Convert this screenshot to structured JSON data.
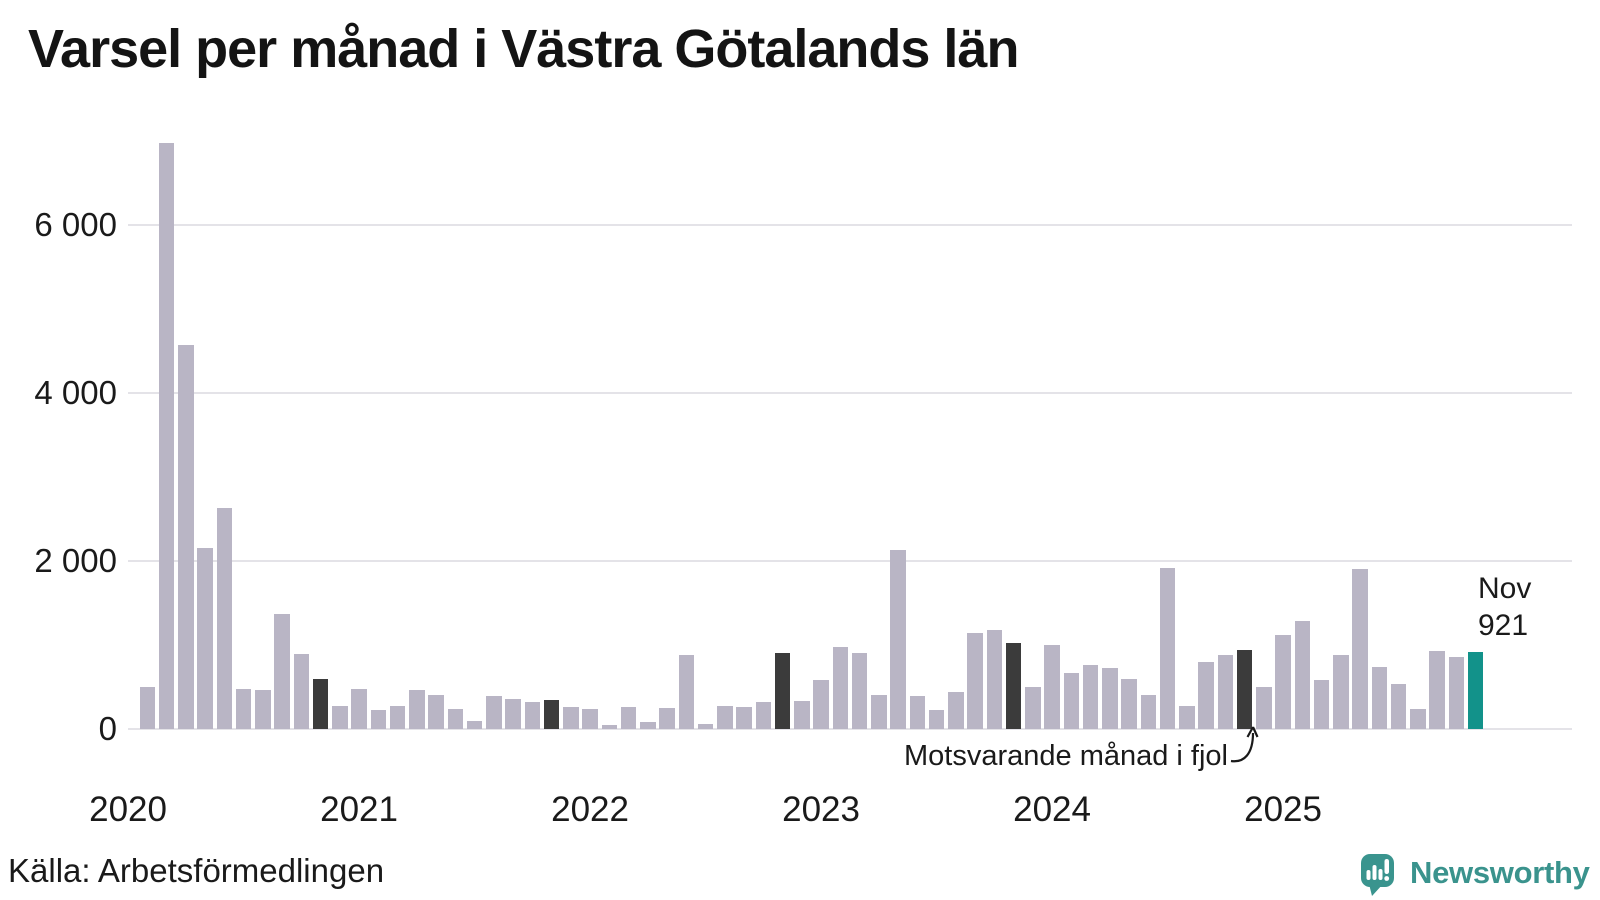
{
  "title": "Varsel per månad i Västra Götalands län",
  "colors": {
    "bar_default": "#b9b5c5",
    "bar_prev_november": "#3b3b3b",
    "bar_current": "#12928a",
    "gridline": "#e4e3e8",
    "text": "#1a1a1a",
    "logo": "#3a938d"
  },
  "y_axis": {
    "ticks": [
      {
        "label": "0",
        "value": 0
      },
      {
        "label": "2 000",
        "value": 2000
      },
      {
        "label": "4 000",
        "value": 4000
      },
      {
        "label": "6 000",
        "value": 6000
      }
    ],
    "max": 7365
  },
  "x_axis": {
    "years": [
      {
        "label": "2020",
        "month_index": -1
      },
      {
        "label": "2021",
        "month_index": 11
      },
      {
        "label": "2022",
        "month_index": 23
      },
      {
        "label": "2023",
        "month_index": 35
      },
      {
        "label": "2024",
        "month_index": 47
      },
      {
        "label": "2025",
        "month_index": 59
      }
    ]
  },
  "chart_data": {
    "type": "bar",
    "title": "Varsel per månad i Västra Götalands län",
    "ylabel": "",
    "xlabel": "",
    "ylim": [
      0,
      7365
    ],
    "grid": true,
    "legend": "none",
    "note": "dark bars = November of each earlier year (motsvarande månad i fjol); teal bar = latest month (Nov 2025)",
    "months": [
      {
        "m": "Feb 2020",
        "v": 500,
        "role": "default"
      },
      {
        "m": "Mar 2020",
        "v": 6980,
        "role": "default"
      },
      {
        "m": "Apr 2020",
        "v": 4570,
        "role": "default"
      },
      {
        "m": "May 2020",
        "v": 2160,
        "role": "default"
      },
      {
        "m": "Jun 2020",
        "v": 2630,
        "role": "default"
      },
      {
        "m": "Jul 2020",
        "v": 480,
        "role": "default"
      },
      {
        "m": "Aug 2020",
        "v": 460,
        "role": "default"
      },
      {
        "m": "Sep 2020",
        "v": 1370,
        "role": "default"
      },
      {
        "m": "Oct 2020",
        "v": 890,
        "role": "default"
      },
      {
        "m": "Nov 2020",
        "v": 590,
        "role": "prev_november"
      },
      {
        "m": "Dec 2020",
        "v": 270,
        "role": "default"
      },
      {
        "m": "Jan 2021",
        "v": 475,
        "role": "default"
      },
      {
        "m": "Feb 2021",
        "v": 225,
        "role": "default"
      },
      {
        "m": "Mar 2021",
        "v": 270,
        "role": "default"
      },
      {
        "m": "Apr 2021",
        "v": 460,
        "role": "default"
      },
      {
        "m": "May 2021",
        "v": 410,
        "role": "default"
      },
      {
        "m": "Jun 2021",
        "v": 240,
        "role": "default"
      },
      {
        "m": "Jul 2021",
        "v": 100,
        "role": "default"
      },
      {
        "m": "Aug 2021",
        "v": 390,
        "role": "default"
      },
      {
        "m": "Sep 2021",
        "v": 355,
        "role": "default"
      },
      {
        "m": "Oct 2021",
        "v": 320,
        "role": "default"
      },
      {
        "m": "Nov 2021",
        "v": 340,
        "role": "prev_november"
      },
      {
        "m": "Dec 2021",
        "v": 265,
        "role": "default"
      },
      {
        "m": "Jan 2022",
        "v": 240,
        "role": "default"
      },
      {
        "m": "Feb 2022",
        "v": 50,
        "role": "default"
      },
      {
        "m": "Mar 2022",
        "v": 260,
        "role": "default"
      },
      {
        "m": "Apr 2022",
        "v": 80,
        "role": "default"
      },
      {
        "m": "May 2022",
        "v": 250,
        "role": "default"
      },
      {
        "m": "Jun 2022",
        "v": 885,
        "role": "default"
      },
      {
        "m": "Jul 2022",
        "v": 65,
        "role": "default"
      },
      {
        "m": "Aug 2022",
        "v": 270,
        "role": "default"
      },
      {
        "m": "Sep 2022",
        "v": 260,
        "role": "default"
      },
      {
        "m": "Oct 2022",
        "v": 325,
        "role": "default"
      },
      {
        "m": "Nov 2022",
        "v": 910,
        "role": "prev_november"
      },
      {
        "m": "Dec 2022",
        "v": 335,
        "role": "default"
      },
      {
        "m": "Jan 2023",
        "v": 580,
        "role": "default"
      },
      {
        "m": "Feb 2023",
        "v": 980,
        "role": "default"
      },
      {
        "m": "Mar 2023",
        "v": 905,
        "role": "default"
      },
      {
        "m": "Apr 2023",
        "v": 410,
        "role": "default"
      },
      {
        "m": "May 2023",
        "v": 2125,
        "role": "default"
      },
      {
        "m": "Jun 2023",
        "v": 390,
        "role": "default"
      },
      {
        "m": "Jul 2023",
        "v": 230,
        "role": "default"
      },
      {
        "m": "Aug 2023",
        "v": 445,
        "role": "default"
      },
      {
        "m": "Sep 2023",
        "v": 1145,
        "role": "default"
      },
      {
        "m": "Oct 2023",
        "v": 1180,
        "role": "default"
      },
      {
        "m": "Nov 2023",
        "v": 1020,
        "role": "prev_november"
      },
      {
        "m": "Dec 2023",
        "v": 495,
        "role": "default"
      },
      {
        "m": "Jan 2024",
        "v": 1000,
        "role": "default"
      },
      {
        "m": "Feb 2024",
        "v": 665,
        "role": "default"
      },
      {
        "m": "Mar 2024",
        "v": 765,
        "role": "default"
      },
      {
        "m": "Apr 2024",
        "v": 725,
        "role": "default"
      },
      {
        "m": "May 2024",
        "v": 590,
        "role": "default"
      },
      {
        "m": "Jun 2024",
        "v": 405,
        "role": "default"
      },
      {
        "m": "Jul 2024",
        "v": 1920,
        "role": "default"
      },
      {
        "m": "Aug 2024",
        "v": 275,
        "role": "default"
      },
      {
        "m": "Sep 2024",
        "v": 800,
        "role": "default"
      },
      {
        "m": "Oct 2024",
        "v": 875,
        "role": "default"
      },
      {
        "m": "Nov 2024",
        "v": 940,
        "role": "prev_november"
      },
      {
        "m": "Dec 2024",
        "v": 495,
        "role": "default"
      },
      {
        "m": "Jan 2025",
        "v": 1120,
        "role": "default"
      },
      {
        "m": "Feb 2025",
        "v": 1285,
        "role": "default"
      },
      {
        "m": "Mar 2025",
        "v": 580,
        "role": "default"
      },
      {
        "m": "Apr 2025",
        "v": 880,
        "role": "default"
      },
      {
        "m": "May 2025",
        "v": 1900,
        "role": "default"
      },
      {
        "m": "Jun 2025",
        "v": 735,
        "role": "default"
      },
      {
        "m": "Jul 2025",
        "v": 530,
        "role": "default"
      },
      {
        "m": "Aug 2025",
        "v": 240,
        "role": "default"
      },
      {
        "m": "Sep 2025",
        "v": 930,
        "role": "default"
      },
      {
        "m": "Oct 2025",
        "v": 855,
        "role": "default"
      },
      {
        "m": "Nov 2025",
        "v": 921,
        "role": "current"
      }
    ]
  },
  "annotation": {
    "text": "Motsvarande månad i fjol",
    "target_month": "Nov 2024"
  },
  "highlight_label": {
    "line1": "Nov",
    "line2": "921"
  },
  "footer": {
    "source": "Källa: Arbetsförmedlingen",
    "brand": "Newsworthy"
  }
}
